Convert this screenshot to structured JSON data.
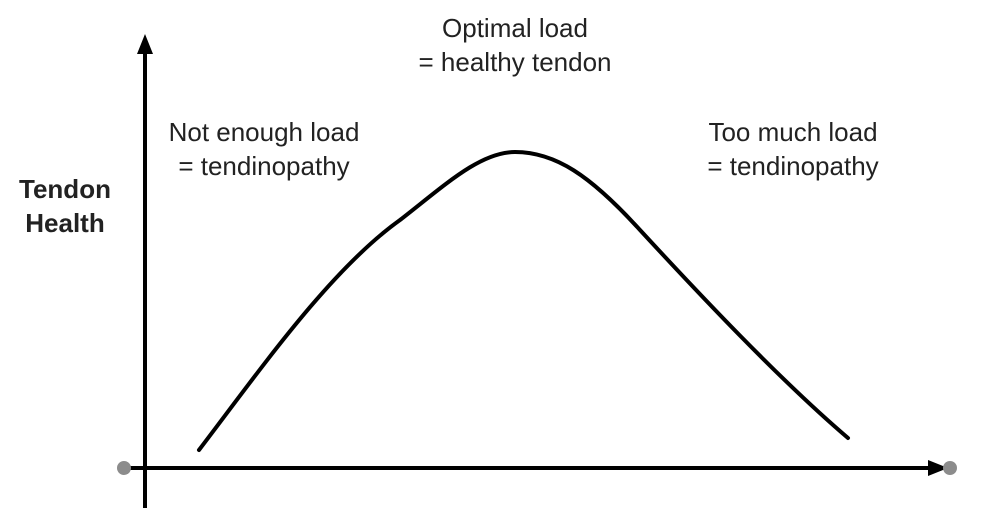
{
  "y_axis": {
    "label_line1": "Tendon",
    "label_line2": "Health"
  },
  "annotations": {
    "optimal": {
      "line1": "Optimal load",
      "line2": "= healthy tendon"
    },
    "not_enough": {
      "line1": "Not enough load",
      "line2": "= tendinopathy"
    },
    "too_much": {
      "line1": "Too much load",
      "line2": "= tendinopathy"
    }
  },
  "colors": {
    "line": "#000000",
    "axis_end_dot": "#8c8c8c",
    "text": "#222222"
  }
}
